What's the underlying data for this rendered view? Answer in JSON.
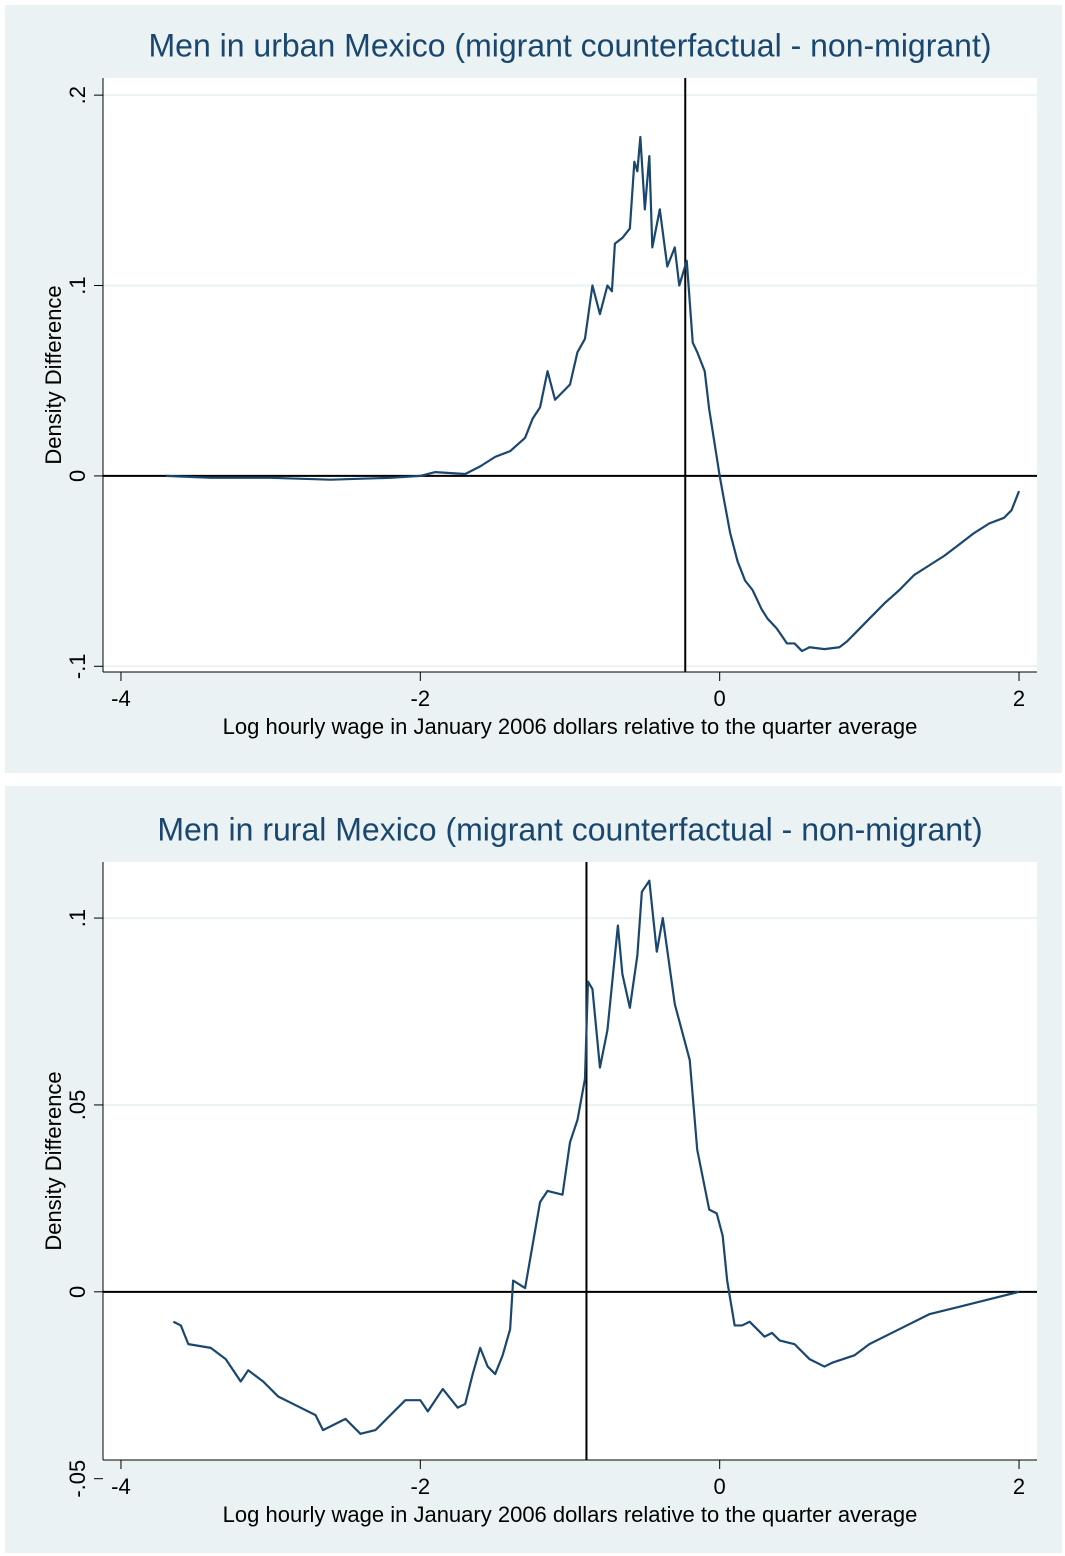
{
  "chart_data": [
    {
      "type": "line",
      "title": "Men in urban Mexico (migrant counterfactual - non-migrant)",
      "xlabel": "Log hourly wage in January 2006 dollars relative to the quarter average",
      "ylabel": "Density Difference",
      "color": "#1a476f",
      "x": [
        -3.7,
        -3.4,
        -3.0,
        -2.6,
        -2.2,
        -2.0,
        -1.9,
        -1.7,
        -1.6,
        -1.5,
        -1.4,
        -1.3,
        -1.25,
        -1.2,
        -1.15,
        -1.1,
        -1.0,
        -0.95,
        -0.9,
        -0.85,
        -0.8,
        -0.75,
        -0.72,
        -0.7,
        -0.65,
        -0.6,
        -0.57,
        -0.55,
        -0.53,
        -0.5,
        -0.47,
        -0.45,
        -0.4,
        -0.35,
        -0.3,
        -0.27,
        -0.22,
        -0.18,
        -0.15,
        -0.1,
        -0.07,
        -0.05,
        -0.02,
        0,
        0.03,
        0.07,
        0.12,
        0.17,
        0.22,
        0.28,
        0.32,
        0.38,
        0.45,
        0.5,
        0.55,
        0.6,
        0.7,
        0.8,
        0.85,
        0.9,
        1.0,
        1.1,
        1.2,
        1.3,
        1.4,
        1.5,
        1.6,
        1.7,
        1.8,
        1.9,
        1.95,
        2.0
      ],
      "values": [
        0,
        -0.001,
        -0.001,
        -0.002,
        -0.001,
        0,
        0.002,
        0.001,
        0.005,
        0.01,
        0.013,
        0.02,
        0.03,
        0.036,
        0.055,
        0.04,
        0.048,
        0.065,
        0.072,
        0.1,
        0.085,
        0.1,
        0.097,
        0.122,
        0.125,
        0.13,
        0.165,
        0.16,
        0.178,
        0.14,
        0.168,
        0.12,
        0.14,
        0.11,
        0.12,
        0.1,
        0.113,
        0.07,
        0.065,
        0.055,
        0.035,
        0.025,
        0.01,
        0,
        -0.013,
        -0.03,
        -0.045,
        -0.055,
        -0.06,
        -0.07,
        -0.075,
        -0.08,
        -0.088,
        -0.088,
        -0.092,
        -0.09,
        -0.091,
        -0.09,
        -0.087,
        -0.083,
        -0.075,
        -0.067,
        -0.06,
        -0.052,
        -0.047,
        -0.042,
        -0.036,
        -0.03,
        -0.025,
        -0.022,
        -0.018,
        -0.008
      ],
      "xlim": [
        -4.12,
        2.12
      ],
      "xticks": [
        -4,
        -2,
        0,
        2
      ],
      "ylim": [
        -0.103,
        0.209
      ],
      "yticks": [
        {
          "value": -0.1,
          "label": "-.1"
        },
        0,
        {
          "value": 0.1,
          "label": ".1"
        },
        {
          "value": 0.2,
          "label": ".2"
        }
      ],
      "xline": -0.23,
      "yline": 0,
      "grid": true
    },
    {
      "type": "line",
      "title": "Men in rural Mexico (migrant counterfactual - non-migrant)",
      "xlabel": "Log hourly wage in January 2006 dollars relative to the quarter average",
      "ylabel": "Density Difference",
      "color": "#1a476f",
      "x": [
        -3.65,
        -3.6,
        -3.55,
        -3.4,
        -3.3,
        -3.2,
        -3.15,
        -3.05,
        -2.95,
        -2.85,
        -2.7,
        -2.65,
        -2.5,
        -2.4,
        -2.3,
        -2.2,
        -2.1,
        -2.0,
        -1.95,
        -1.85,
        -1.75,
        -1.7,
        -1.65,
        -1.6,
        -1.55,
        -1.5,
        -1.45,
        -1.4,
        -1.38,
        -1.3,
        -1.2,
        -1.15,
        -1.05,
        -1.0,
        -0.95,
        -0.9,
        -0.88,
        -0.85,
        -0.8,
        -0.75,
        -0.68,
        -0.65,
        -0.6,
        -0.55,
        -0.52,
        -0.47,
        -0.42,
        -0.38,
        -0.3,
        -0.2,
        -0.15,
        -0.07,
        -0.02,
        0.02,
        0.05,
        0.1,
        0.15,
        0.2,
        0.3,
        0.35,
        0.4,
        0.5,
        0.6,
        0.7,
        0.75,
        0.9,
        1.0,
        1.2,
        1.4,
        1.6,
        1.8,
        2.0
      ],
      "values": [
        -0.008,
        -0.009,
        -0.014,
        -0.015,
        -0.018,
        -0.024,
        -0.021,
        -0.024,
        -0.028,
        -0.03,
        -0.033,
        -0.037,
        -0.034,
        -0.038,
        -0.037,
        -0.033,
        -0.029,
        -0.029,
        -0.032,
        -0.026,
        -0.031,
        -0.03,
        -0.022,
        -0.015,
        -0.02,
        -0.022,
        -0.017,
        -0.01,
        0.003,
        0.001,
        0.024,
        0.027,
        0.026,
        0.04,
        0.046,
        0.057,
        0.083,
        0.081,
        0.06,
        0.07,
        0.098,
        0.085,
        0.076,
        0.09,
        0.107,
        0.11,
        0.091,
        0.1,
        0.077,
        0.062,
        0.038,
        0.022,
        0.021,
        0.015,
        0.003,
        -0.009,
        -0.009,
        -0.008,
        -0.012,
        -0.011,
        -0.013,
        -0.014,
        -0.018,
        -0.02,
        -0.019,
        -0.017,
        -0.014,
        -0.01,
        -0.006,
        -0.004,
        -0.002,
        0
      ],
      "xlim": [
        -4.12,
        2.12
      ],
      "xticks": [
        -4,
        -2,
        0,
        2
      ],
      "ylim": [
        -0.045,
        0.115
      ],
      "yticks": [
        {
          "value": -0.05,
          "label": "-.05"
        },
        0,
        {
          "value": 0.05,
          "label": ".05"
        },
        {
          "value": 0.1,
          "label": ".1"
        }
      ],
      "xline": -0.89,
      "yline": 0,
      "grid": true
    }
  ]
}
